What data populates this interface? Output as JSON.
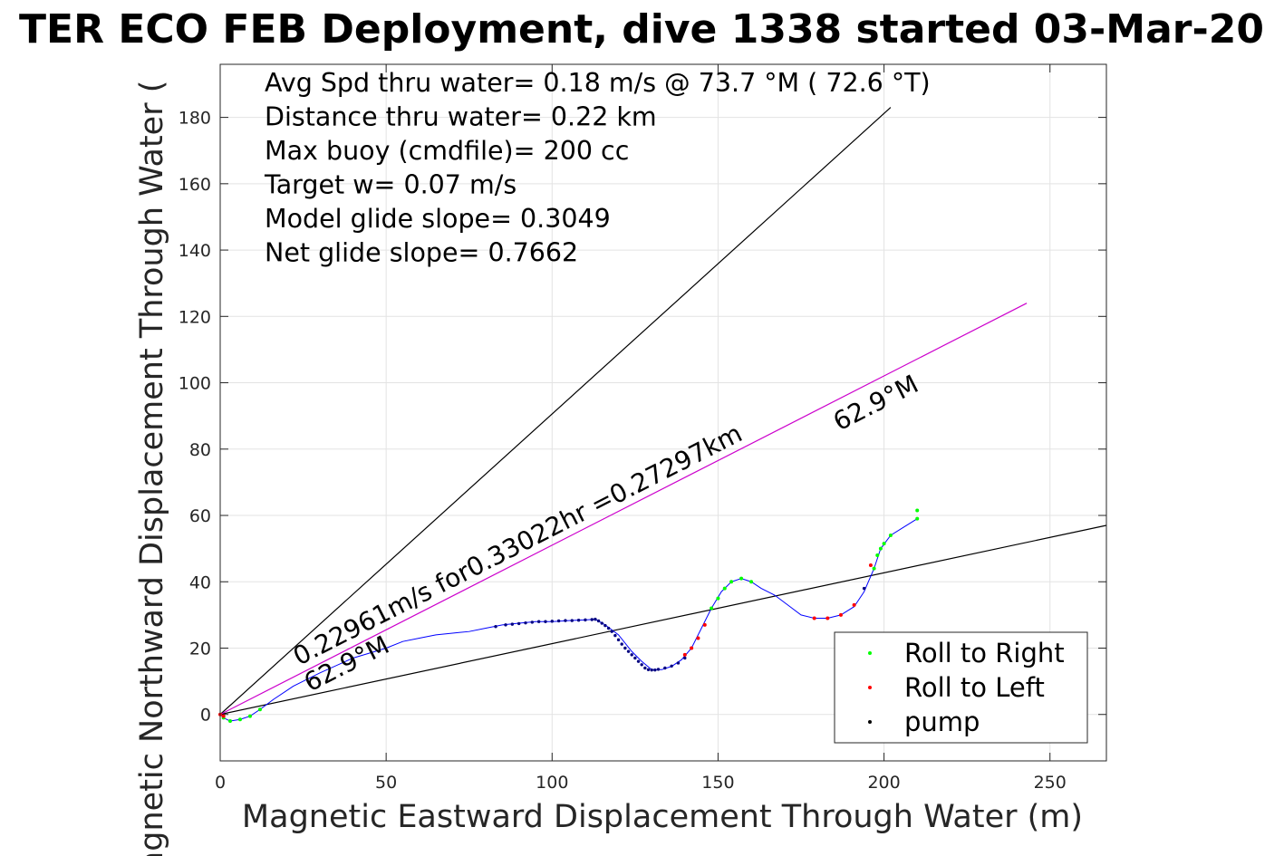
{
  "chart_data": {
    "type": "line",
    "title": "TER ECO FEB Deployment, dive 1338 started 03-Mar-20",
    "xlabel": "Magnetic Eastward Displacement Through Water (m)",
    "ylabel": "Magnetic Northward Displacement Through Water (",
    "xlim": [
      0,
      267
    ],
    "ylim": [
      -14,
      196
    ],
    "xticks": [
      0,
      50,
      100,
      150,
      200,
      250
    ],
    "yticks": [
      0,
      20,
      40,
      60,
      80,
      100,
      120,
      140,
      160,
      180
    ],
    "grid": true,
    "info_lines": [
      "Avg Spd thru water=  0.18 m/s @  73.7 °M ( 72.6 °T)",
      "Distance thru water=  0.22 km",
      "Max buoy (cmdfile)= 200 cc",
      "Target w= 0.07 m/s",
      "Model glide slope= 0.3049",
      "Net glide slope= 0.7662"
    ],
    "annotations": [
      "0.22961m/s for0.33022hr =0.27297km",
      "62.9°M",
      "62.9°M"
    ],
    "legend": {
      "placement": "bottom-right",
      "entries": [
        {
          "label": "Roll to Right",
          "color": "#00ff00"
        },
        {
          "label": "Roll to Left",
          "color": "#ff0000"
        },
        {
          "label": "pump",
          "color": "#000000"
        }
      ]
    },
    "reference_lines": [
      {
        "name": "",
        "color": "#000000",
        "points": [
          [
            0,
            0
          ],
          [
            202,
            183
          ]
        ]
      },
      {
        "name": "",
        "color": "#000000",
        "points": [
          [
            0,
            0
          ],
          [
            267,
            57
          ]
        ]
      },
      {
        "name": "",
        "color": "#cc00cc",
        "points": [
          [
            0,
            0
          ],
          [
            243,
            124
          ]
        ]
      }
    ],
    "series": [
      {
        "name": "",
        "color": "#0000ff",
        "points": [
          [
            0,
            0
          ],
          [
            1,
            -1
          ],
          [
            3,
            -2
          ],
          [
            6,
            -1.5
          ],
          [
            9,
            -0.5
          ],
          [
            12,
            1.5
          ],
          [
            16,
            4.5
          ],
          [
            22,
            8.5
          ],
          [
            30,
            12.5
          ],
          [
            40,
            17
          ],
          [
            50,
            20
          ],
          [
            55,
            22
          ],
          [
            60,
            23
          ],
          [
            65,
            24
          ],
          [
            70,
            24.5
          ],
          [
            75,
            25
          ],
          [
            80,
            26
          ],
          [
            85,
            27
          ],
          [
            90,
            27.5
          ],
          [
            95,
            28
          ],
          [
            100,
            28
          ],
          [
            105,
            28.3
          ],
          [
            110,
            28.5
          ],
          [
            113,
            28.7
          ],
          [
            116,
            27
          ],
          [
            120,
            24
          ],
          [
            124,
            19
          ],
          [
            127,
            16
          ],
          [
            130,
            13.5
          ],
          [
            133,
            13.5
          ],
          [
            136,
            14.5
          ],
          [
            139,
            16.5
          ],
          [
            142,
            20
          ],
          [
            145,
            26
          ],
          [
            148,
            32
          ],
          [
            151,
            37
          ],
          [
            154,
            40
          ],
          [
            157,
            41
          ],
          [
            160,
            40
          ],
          [
            163,
            38
          ],
          [
            167,
            36
          ],
          [
            171,
            33
          ],
          [
            175,
            30
          ],
          [
            179,
            29
          ],
          [
            183,
            29
          ],
          [
            187,
            30
          ],
          [
            191,
            32.5
          ],
          [
            194,
            37
          ],
          [
            197,
            44
          ],
          [
            199,
            50
          ],
          [
            202,
            54
          ],
          [
            206,
            56.5
          ],
          [
            210,
            59
          ]
        ]
      }
    ],
    "roll_right_points": [
      [
        1,
        -1
      ],
      [
        3,
        -2
      ],
      [
        6,
        -1.5
      ],
      [
        9,
        -0.5
      ],
      [
        12,
        1.5
      ],
      [
        148,
        32
      ],
      [
        150,
        35
      ],
      [
        152,
        38
      ],
      [
        154,
        40
      ],
      [
        157,
        41
      ],
      [
        160,
        40
      ],
      [
        197,
        44
      ],
      [
        198,
        48
      ],
      [
        199,
        50
      ],
      [
        200,
        51.5
      ],
      [
        202,
        54
      ],
      [
        210,
        59
      ],
      [
        210,
        61.5
      ]
    ],
    "roll_left_points": [
      [
        0,
        0
      ],
      [
        1,
        -0.5
      ],
      [
        140,
        18
      ],
      [
        142,
        20
      ],
      [
        144,
        23
      ],
      [
        146,
        27
      ],
      [
        179,
        29
      ],
      [
        183,
        29
      ],
      [
        187,
        30
      ],
      [
        191,
        33
      ],
      [
        196,
        45
      ]
    ],
    "pump_points": [
      [
        83,
        26.5
      ],
      [
        86,
        27
      ],
      [
        88,
        27.2
      ],
      [
        90,
        27.4
      ],
      [
        92,
        27.6
      ],
      [
        94,
        27.8
      ],
      [
        96,
        28
      ],
      [
        98,
        28
      ],
      [
        100,
        28.1
      ],
      [
        102,
        28.2
      ],
      [
        104,
        28.3
      ],
      [
        106,
        28.3
      ],
      [
        108,
        28.4
      ],
      [
        110,
        28.5
      ],
      [
        112,
        28.6
      ],
      [
        113,
        28.7
      ],
      [
        114,
        28.2
      ],
      [
        115,
        27.5
      ],
      [
        116,
        26.8
      ],
      [
        117,
        26
      ],
      [
        118,
        25
      ],
      [
        119,
        23.8
      ],
      [
        120,
        22.5
      ],
      [
        121,
        21.2
      ],
      [
        122,
        20
      ],
      [
        123,
        19
      ],
      [
        124,
        18
      ],
      [
        125,
        17
      ],
      [
        126,
        16
      ],
      [
        127,
        15
      ],
      [
        128,
        14
      ],
      [
        129,
        13.5
      ],
      [
        130,
        13.4
      ],
      [
        131,
        13.4
      ],
      [
        132,
        13.6
      ],
      [
        134,
        14
      ],
      [
        136,
        14.6
      ],
      [
        138,
        15.5
      ],
      [
        140,
        17
      ],
      [
        194,
        38
      ]
    ]
  }
}
